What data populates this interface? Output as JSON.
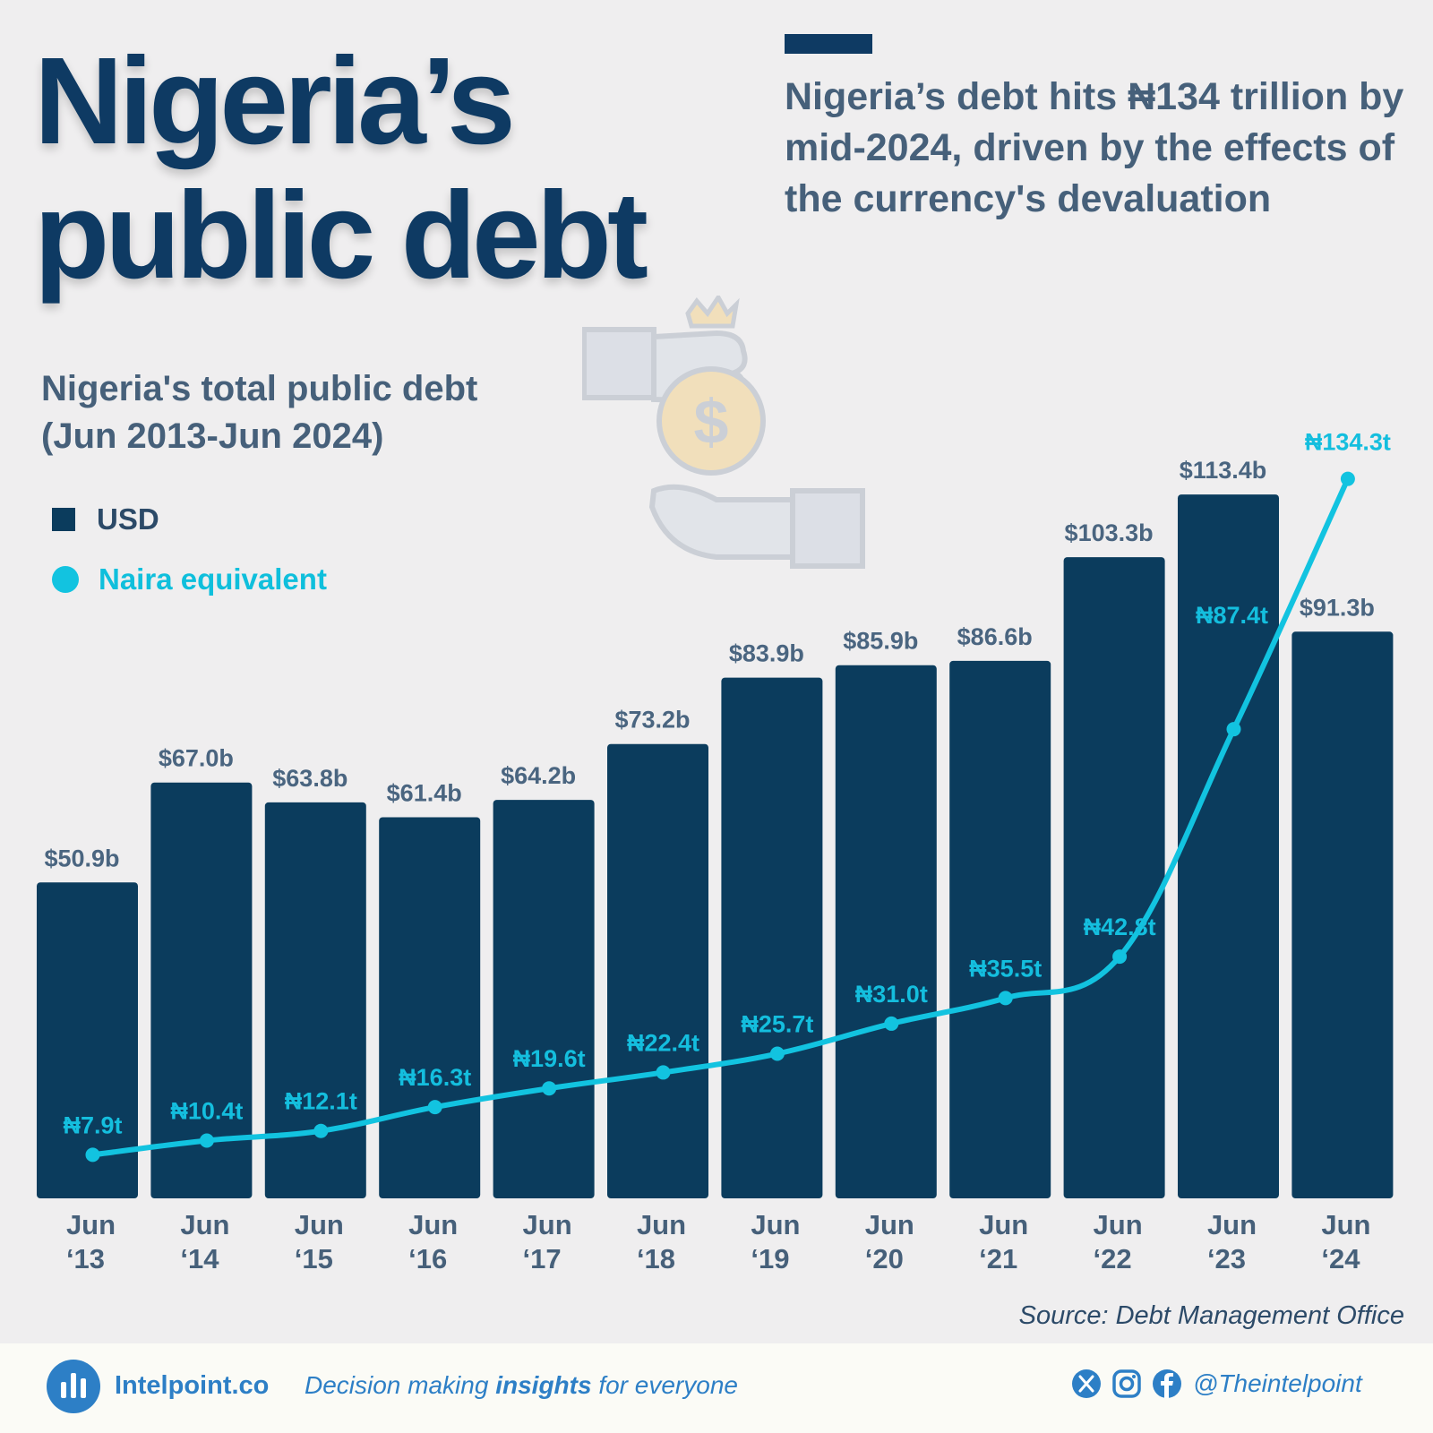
{
  "header": {
    "title_line1": "Nigeria’s",
    "title_line2": "public debt",
    "subtitle": "Nigeria’s debt hits ₦134 trillion by mid-2024, driven by the effects of the currency's devaluation"
  },
  "chart_title_line1": "Nigeria's total public debt",
  "chart_title_line2": "(Jun 2013-Jun 2024)",
  "legend": {
    "usd": "USD",
    "naira": "Naira equivalent"
  },
  "colors": {
    "bar": "#0b3c5d",
    "line": "#12c3e0",
    "title": "#0e3a63",
    "text": "#46607a",
    "accent": "#2d7fc6"
  },
  "chart_data": {
    "type": "bar",
    "title": "Nigeria's total public debt (Jun 2013-Jun 2024)",
    "categories": [
      [
        "Jun",
        "‘13"
      ],
      [
        "Jun",
        "‘14"
      ],
      [
        "Jun",
        "‘15"
      ],
      [
        "Jun",
        "‘16"
      ],
      [
        "Jun",
        "‘17"
      ],
      [
        "Jun",
        "‘18"
      ],
      [
        "Jun",
        "‘19"
      ],
      [
        "Jun",
        "‘20"
      ],
      [
        "Jun",
        "‘21"
      ],
      [
        "Jun",
        "‘22"
      ],
      [
        "Jun",
        "‘23"
      ],
      [
        "Jun",
        "‘24"
      ]
    ],
    "series": [
      {
        "name": "USD",
        "type": "bar",
        "unit": "billion USD",
        "values": [
          50.9,
          67.0,
          63.8,
          61.4,
          64.2,
          73.2,
          83.9,
          85.9,
          86.6,
          103.3,
          113.4,
          91.3
        ],
        "labels": [
          "$50.9b",
          "$67.0b",
          "$63.8b",
          "$61.4b",
          "$64.2b",
          "$73.2b",
          "$83.9b",
          "$85.9b",
          "$86.6b",
          "$103.3b",
          "$113.4b",
          "$91.3b"
        ]
      },
      {
        "name": "Naira equivalent",
        "type": "line",
        "unit": "trillion Naira",
        "values": [
          7.9,
          10.4,
          12.1,
          16.3,
          19.6,
          22.4,
          25.7,
          31.0,
          35.5,
          42.8,
          87.4,
          134.3
        ],
        "labels": [
          "₦7.9t",
          "₦10.4t",
          "₦12.1t",
          "₦16.3t",
          "₦19.6t",
          "₦22.4t",
          "₦25.7t",
          "₦31.0t",
          "₦35.5t",
          "₦42.8t",
          "₦87.4t",
          "₦134.3t"
        ]
      }
    ],
    "xlabel": "",
    "ylabel": ""
  },
  "source": "Source: Debt Management Office",
  "footer": {
    "brand": "Intelpoint.co",
    "tagline_pre": "Decision making ",
    "tagline_bold": "insights",
    "tagline_post": " for everyone",
    "handle": "@Theintelpoint",
    "icons": [
      "x-icon",
      "instagram-icon",
      "facebook-icon"
    ]
  }
}
